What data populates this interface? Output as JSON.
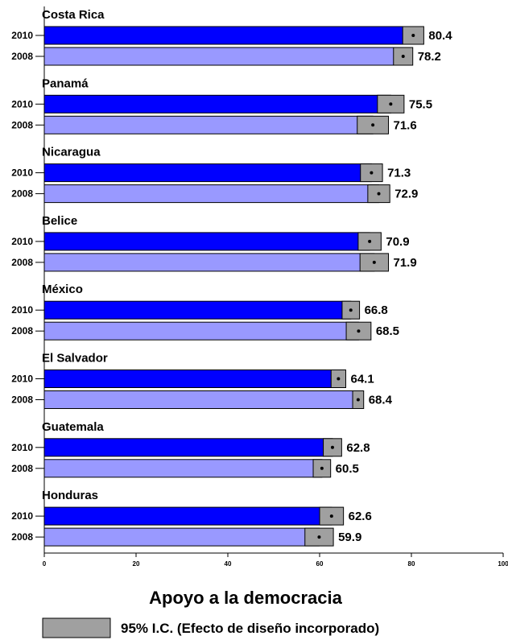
{
  "chart_data": {
    "type": "bar",
    "orientation": "horizontal",
    "xlabel": "Apoyo a la democracia",
    "xlim": [
      0,
      100
    ],
    "xticks": [
      "0",
      "20",
      "40",
      "60",
      "80",
      "100"
    ],
    "legend": {
      "label": "95% I.C. (Efecto de diseño incorporado)",
      "placement": "bottom"
    },
    "series_styles": [
      {
        "year": "2010",
        "color": "#0000ff"
      },
      {
        "year": "2008",
        "color": "#9999ff"
      }
    ],
    "ci_color": "#a0a0a0",
    "groups": [
      {
        "country": "Costa Rica",
        "bars": [
          {
            "year": "2010",
            "value": 80.4,
            "label": "80.4",
            "ci": [
              78.1,
              82.7
            ]
          },
          {
            "year": "2008",
            "value": 78.2,
            "label": "78.2",
            "ci": [
              76.1,
              80.3
            ]
          }
        ]
      },
      {
        "country": "Panamá",
        "bars": [
          {
            "year": "2010",
            "value": 75.5,
            "label": "75.5",
            "ci": [
              72.6,
              78.4
            ]
          },
          {
            "year": "2008",
            "value": 71.6,
            "label": "71.6",
            "ci": [
              68.2,
              75.0
            ]
          }
        ]
      },
      {
        "country": "Nicaragua",
        "bars": [
          {
            "year": "2010",
            "value": 71.3,
            "label": "71.3",
            "ci": [
              68.9,
              73.7
            ]
          },
          {
            "year": "2008",
            "value": 72.9,
            "label": "72.9",
            "ci": [
              70.5,
              75.3
            ]
          }
        ]
      },
      {
        "country": "Belice",
        "bars": [
          {
            "year": "2010",
            "value": 70.9,
            "label": "70.9",
            "ci": [
              68.4,
              73.4
            ]
          },
          {
            "year": "2008",
            "value": 71.9,
            "label": "71.9",
            "ci": [
              68.8,
              75.0
            ]
          }
        ]
      },
      {
        "country": "México",
        "bars": [
          {
            "year": "2010",
            "value": 66.8,
            "label": "66.8",
            "ci": [
              64.9,
              68.7
            ]
          },
          {
            "year": "2008",
            "value": 68.5,
            "label": "68.5",
            "ci": [
              65.8,
              71.2
            ]
          }
        ]
      },
      {
        "country": "El Salvador",
        "bars": [
          {
            "year": "2010",
            "value": 64.1,
            "label": "64.1",
            "ci": [
              62.5,
              65.7
            ]
          },
          {
            "year": "2008",
            "value": 68.4,
            "label": "68.4",
            "ci": [
              67.2,
              69.6
            ]
          }
        ]
      },
      {
        "country": "Guatemala",
        "bars": [
          {
            "year": "2010",
            "value": 62.8,
            "label": "62.8",
            "ci": [
              60.8,
              64.8
            ]
          },
          {
            "year": "2008",
            "value": 60.5,
            "label": "60.5",
            "ci": [
              58.6,
              62.4
            ]
          }
        ]
      },
      {
        "country": "Honduras",
        "bars": [
          {
            "year": "2010",
            "value": 62.6,
            "label": "62.6",
            "ci": [
              60.0,
              65.2
            ]
          },
          {
            "year": "2008",
            "value": 59.9,
            "label": "59.9",
            "ci": [
              56.8,
              63.0
            ]
          }
        ]
      }
    ]
  }
}
